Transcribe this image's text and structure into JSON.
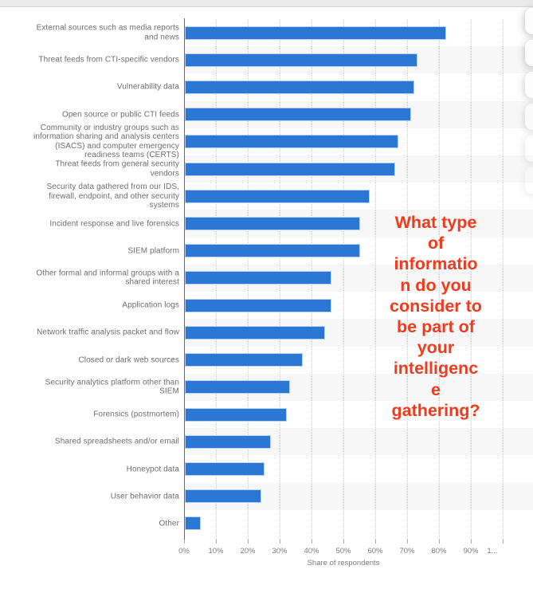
{
  "chart_data": {
    "type": "bar",
    "orientation": "horizontal",
    "title": "",
    "xlabel": "Share of respondents",
    "ylabel": "",
    "xlim": [
      0,
      100
    ],
    "unit": "%",
    "grid": "vertical-dotted",
    "legend": "none",
    "bar_color": "#2d77d4",
    "x_tick_labels": [
      "0%",
      "10%",
      "20%",
      "30%",
      "40%",
      "50%",
      "60%",
      "70%",
      "80%",
      "90%",
      "1..."
    ],
    "categories": [
      "External sources such as media reports\nand news",
      "Threat feeds from CTI-specific vendors",
      "Vulnerability data",
      "Open source or public CTI feeds",
      "Community or industry groups such as\ninformation sharing and analysis centers\n(ISACS) and computer emergency\nreadiness teams (CERTS)",
      "Threat feeds from general security\nvendors",
      "Security data gathered from our IDS,\nfirewall, endpoint, and other security\nsystems",
      "Incident response and live forensics",
      "SIEM platform",
      "Other formal and informal groups with a\nshared interest",
      "Application logs",
      "Network traffic analysis packet and flow",
      "Closed or dark web sources",
      "Security analytics platform other than\nSIEM",
      "Forensics (postmortem)",
      "Shared spreadsheets and/or email",
      "Honeypot data",
      "User behavior data",
      "Other"
    ],
    "values": [
      82,
      73,
      72,
      71,
      67,
      66,
      58,
      55,
      55,
      46,
      46,
      44,
      37,
      33,
      32,
      27,
      25,
      24,
      5
    ]
  },
  "annotation": {
    "text": "What type\nof\ninformatio\nn do you\nconsider to\nbe part of\nyour\nintelligenc\ne\ngathering?",
    "color": "#f23a1c"
  },
  "side_panel": {
    "cards_visible": 6
  }
}
